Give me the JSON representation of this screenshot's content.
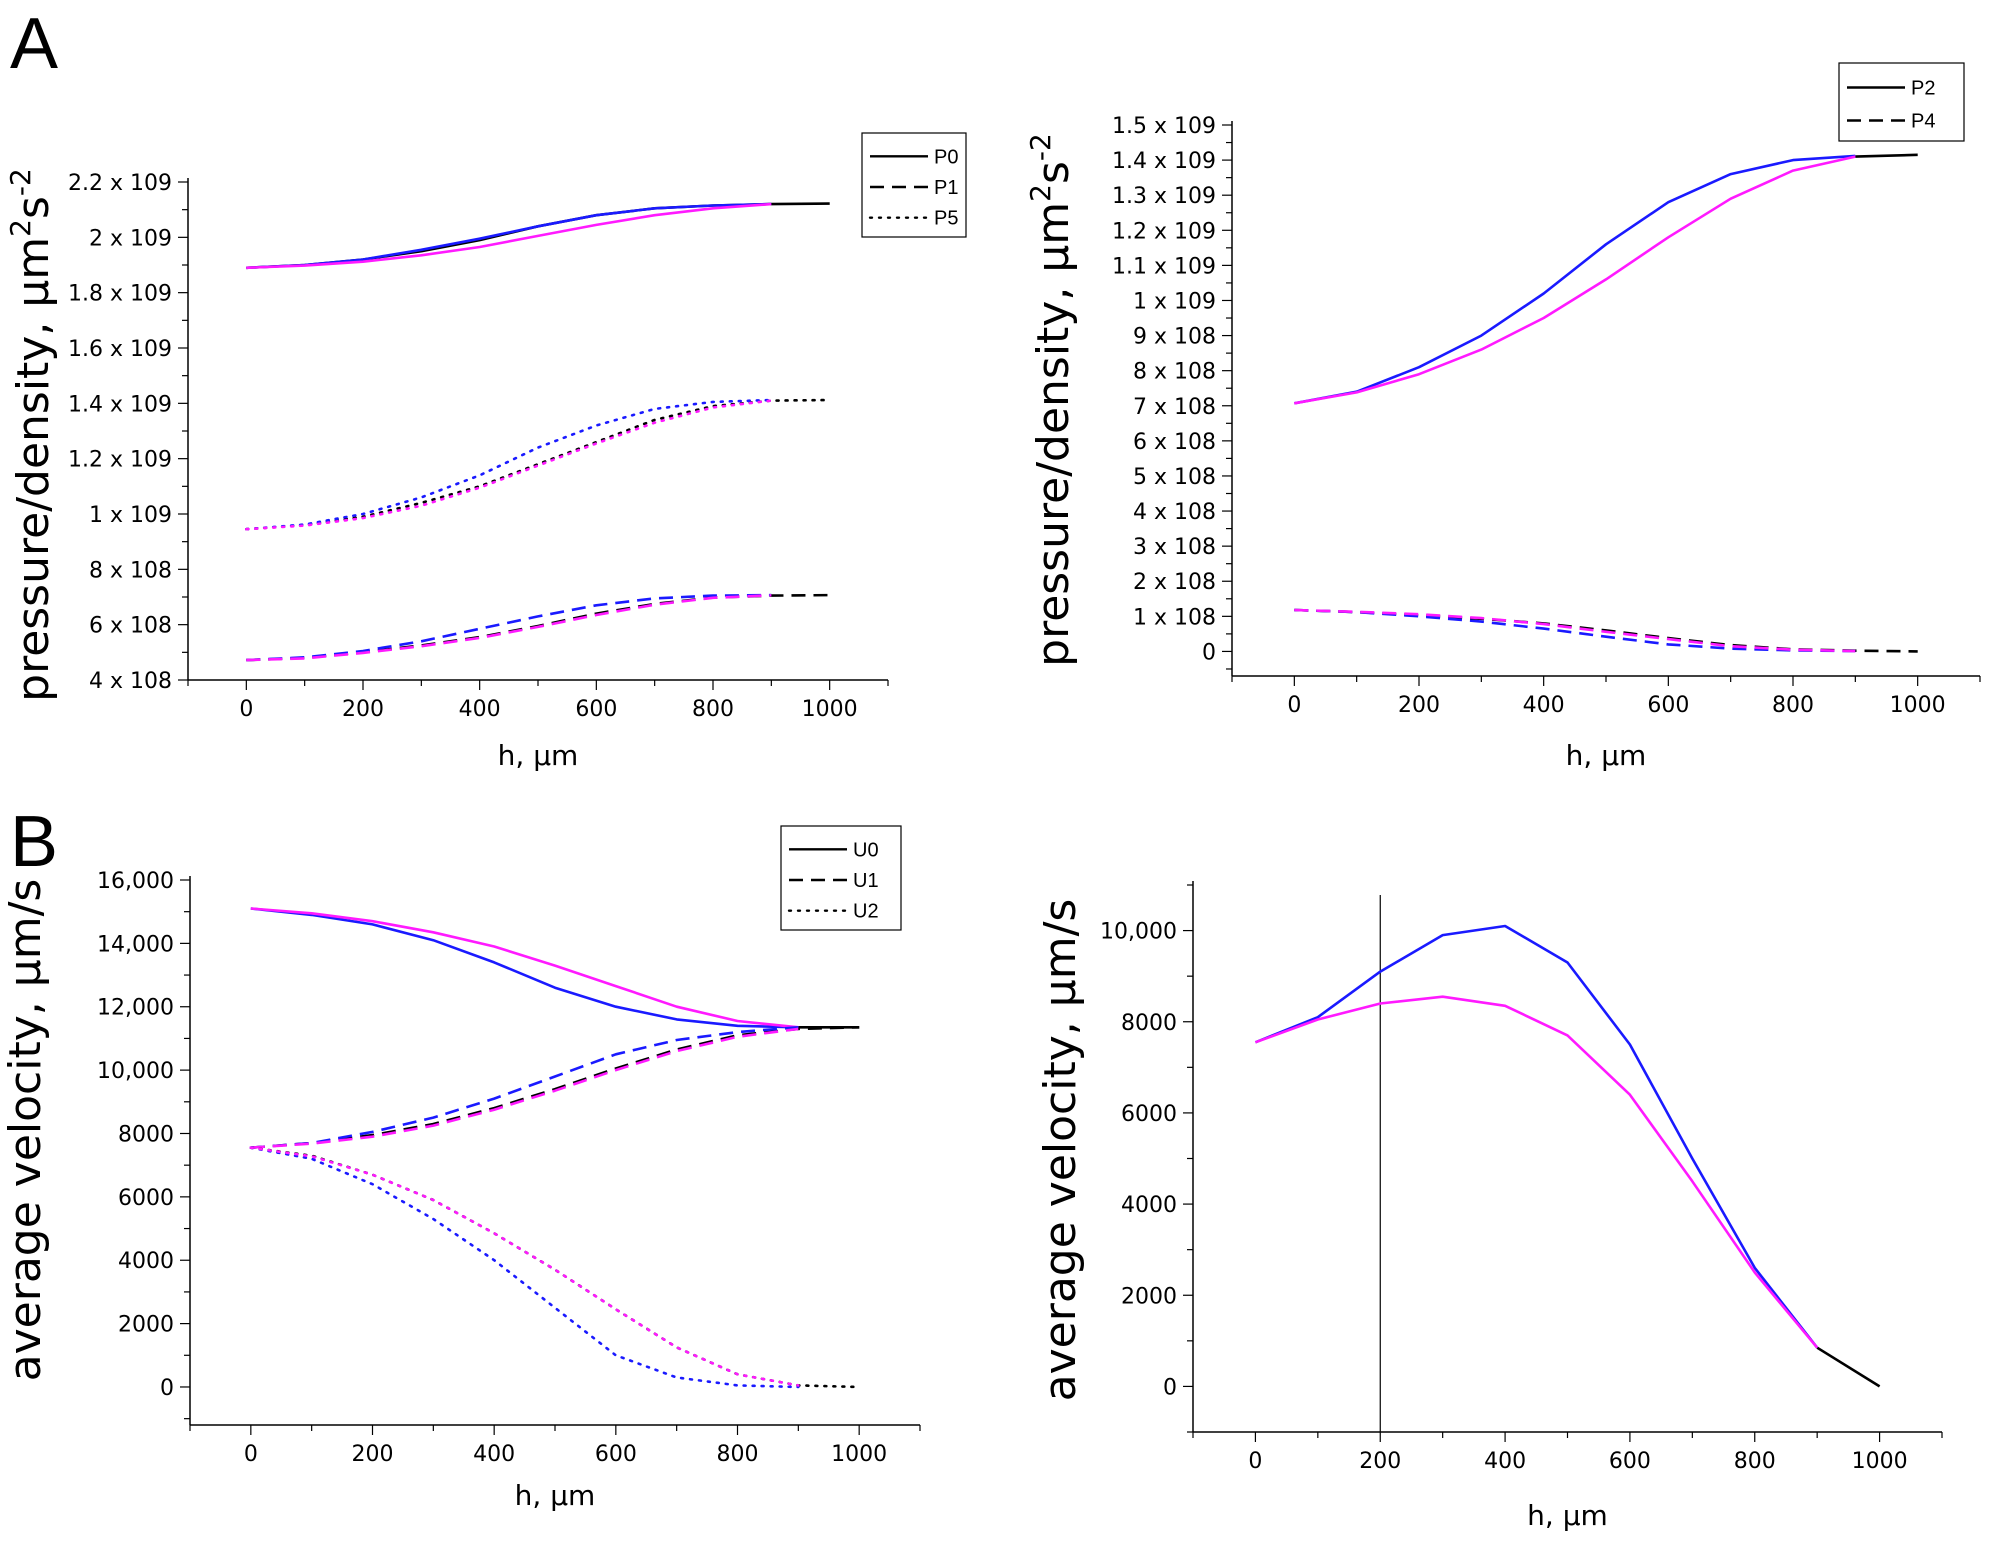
{
  "figure": {
    "panel_labels": [
      "A",
      "B"
    ]
  },
  "chart_data": [
    {
      "id": "A-left",
      "type": "line",
      "title": "",
      "xlabel": "h, µm",
      "ylabel": "pressure/density, µm²s⁻²",
      "ylabel_main": "pressure/density, µm",
      "ylabel_sup1": "2",
      "ylabel_mid": "s",
      "ylabel_sup2": "-2",
      "xlim": [
        -100,
        1100
      ],
      "ylim": [
        400000000,
        2200000000
      ],
      "x_ticks": [
        0,
        200,
        400,
        600,
        800,
        1000
      ],
      "x_tick_labels": [
        "0",
        "200",
        "400",
        "600",
        "800",
        "1000"
      ],
      "y_ticks": [
        400000000,
        600000000,
        800000000,
        1000000000,
        1200000000,
        1400000000,
        1600000000,
        1800000000,
        2000000000,
        2200000000
      ],
      "y_tick_labels": [
        "4 x 108",
        "6 x 108",
        "8 x 108",
        "1 x 109",
        "1.2 x 109",
        "1.4 x 109",
        "1.6 x 109",
        "1.8 x 109",
        "2 x 109",
        "2.2 x 109"
      ],
      "legend": {
        "position": "top-right",
        "entries": [
          {
            "label": "P0",
            "style": "solid"
          },
          {
            "label": "P1",
            "style": "dashed"
          },
          {
            "label": "P5",
            "style": "dotted"
          }
        ]
      },
      "series": [
        {
          "name": "P0",
          "color": "#000000",
          "style": "solid",
          "x": [
            0,
            100,
            200,
            300,
            400,
            500,
            600,
            700,
            800,
            900,
            1000
          ],
          "y": [
            1890000000,
            1900000000,
            1920000000,
            1950000000,
            1990000000,
            2040000000,
            2080000000,
            2105000000,
            2115000000,
            2120000000,
            2122000000
          ]
        },
        {
          "name": "P0 (blue)",
          "color": "#1a1aff",
          "style": "solid",
          "x": [
            0,
            100,
            200,
            300,
            400,
            500,
            600,
            700,
            800,
            900
          ],
          "y": [
            1890000000,
            1900000000,
            1920000000,
            1955000000,
            1995000000,
            2040000000,
            2080000000,
            2105000000,
            2115000000,
            2120000000
          ]
        },
        {
          "name": "P0 (magenta)",
          "color": "#ff1aff",
          "style": "solid",
          "x": [
            0,
            100,
            200,
            300,
            400,
            500,
            600,
            700,
            800,
            900
          ],
          "y": [
            1890000000,
            1898000000,
            1912000000,
            1935000000,
            1965000000,
            2005000000,
            2045000000,
            2080000000,
            2105000000,
            2120000000
          ]
        },
        {
          "name": "P5",
          "color": "#000000",
          "style": "dotted",
          "x": [
            0,
            100,
            200,
            300,
            400,
            500,
            600,
            700,
            800,
            900,
            1000
          ],
          "y": [
            945000000,
            960000000,
            990000000,
            1040000000,
            1100000000,
            1180000000,
            1260000000,
            1340000000,
            1390000000,
            1410000000,
            1412000000
          ]
        },
        {
          "name": "P5 (blue)",
          "color": "#1a1aff",
          "style": "dotted",
          "x": [
            0,
            100,
            200,
            300,
            400,
            500,
            600,
            700,
            800,
            900
          ],
          "y": [
            945000000,
            962000000,
            1000000000,
            1060000000,
            1140000000,
            1240000000,
            1320000000,
            1380000000,
            1405000000,
            1412000000
          ]
        },
        {
          "name": "P5 (magenta)",
          "color": "#ff1aff",
          "style": "dotted",
          "x": [
            0,
            100,
            200,
            300,
            400,
            500,
            600,
            700,
            800,
            900
          ],
          "y": [
            945000000,
            958000000,
            985000000,
            1030000000,
            1095000000,
            1175000000,
            1255000000,
            1330000000,
            1385000000,
            1410000000
          ]
        },
        {
          "name": "P1",
          "color": "#000000",
          "style": "dashed",
          "x": [
            0,
            100,
            200,
            300,
            400,
            500,
            600,
            700,
            800,
            900,
            1000
          ],
          "y": [
            472000000,
            480000000,
            500000000,
            525000000,
            555000000,
            595000000,
            640000000,
            675000000,
            698000000,
            705000000,
            707000000
          ]
        },
        {
          "name": "P1 (blue)",
          "color": "#1a1aff",
          "style": "dashed",
          "x": [
            0,
            100,
            200,
            300,
            400,
            500,
            600,
            700,
            800,
            900
          ],
          "y": [
            472000000,
            482000000,
            505000000,
            540000000,
            585000000,
            630000000,
            670000000,
            695000000,
            705000000,
            707000000
          ]
        },
        {
          "name": "P1 (magenta)",
          "color": "#ff1aff",
          "style": "dashed",
          "x": [
            0,
            100,
            200,
            300,
            400,
            500,
            600,
            700,
            800,
            900
          ],
          "y": [
            472000000,
            478000000,
            498000000,
            522000000,
            552000000,
            592000000,
            635000000,
            672000000,
            697000000,
            706000000
          ]
        }
      ]
    },
    {
      "id": "A-right",
      "type": "line",
      "title": "",
      "xlabel": "h, µm",
      "ylabel": "pressure/density, µm²s⁻²",
      "ylabel_main": "pressure/density, µm",
      "ylabel_sup1": "2",
      "ylabel_mid": "s",
      "ylabel_sup2": "-2",
      "xlim": [
        -100,
        1100
      ],
      "ylim": [
        -70000000,
        1500000000
      ],
      "x_ticks": [
        0,
        200,
        400,
        600,
        800,
        1000
      ],
      "x_tick_labels": [
        "0",
        "200",
        "400",
        "600",
        "800",
        "1000"
      ],
      "y_ticks": [
        0,
        100000000,
        200000000,
        300000000,
        400000000,
        500000000,
        600000000,
        700000000,
        800000000,
        900000000,
        1000000000,
        1100000000,
        1200000000,
        1300000000,
        1400000000,
        1500000000
      ],
      "y_tick_labels": [
        "0",
        "1 x 108",
        "2 x 108",
        "3 x 108",
        "4 x 108",
        "5 x 108",
        "6 x 108",
        "7 x 108",
        "8 x 108",
        "9 x 108",
        "1 x 109",
        "1.1 x 109",
        "1.2 x 109",
        "1.3 x 109",
        "1.4 x 109",
        "1.5 x 109"
      ],
      "legend": {
        "position": "top-right",
        "entries": [
          {
            "label": "P2",
            "style": "solid"
          },
          {
            "label": "P4",
            "style": "dashed"
          }
        ]
      },
      "series": [
        {
          "name": "P2",
          "color": "#000000",
          "style": "solid",
          "x": [
            900,
            1000
          ],
          "y": [
            1410000000,
            1415000000
          ]
        },
        {
          "name": "P2 (blue)",
          "color": "#1a1aff",
          "style": "solid",
          "x": [
            0,
            100,
            200,
            300,
            400,
            500,
            600,
            700,
            800,
            900
          ],
          "y": [
            707000000,
            740000000,
            810000000,
            900000000,
            1020000000,
            1160000000,
            1280000000,
            1360000000,
            1400000000,
            1412000000
          ]
        },
        {
          "name": "P2 (magenta)",
          "color": "#ff1aff",
          "style": "solid",
          "x": [
            0,
            100,
            200,
            300,
            400,
            500,
            600,
            700,
            800,
            900
          ],
          "y": [
            707000000,
            738000000,
            790000000,
            860000000,
            950000000,
            1060000000,
            1180000000,
            1290000000,
            1370000000,
            1410000000
          ]
        },
        {
          "name": "P4",
          "color": "#000000",
          "style": "dashed",
          "x": [
            0,
            100,
            200,
            300,
            400,
            500,
            600,
            700,
            800,
            900,
            1000
          ],
          "y": [
            118000000,
            112000000,
            103000000,
            93000000,
            80000000,
            60000000,
            38000000,
            18000000,
            6000000,
            2000000,
            0
          ]
        },
        {
          "name": "P4 (blue)",
          "color": "#1a1aff",
          "style": "dashed",
          "x": [
            0,
            100,
            200,
            300,
            400,
            500,
            600,
            700,
            800,
            900
          ],
          "y": [
            118000000,
            112000000,
            100000000,
            85000000,
            65000000,
            42000000,
            20000000,
            8000000,
            3000000,
            1000000
          ]
        },
        {
          "name": "P4 (magenta)",
          "color": "#ff1aff",
          "style": "dashed",
          "x": [
            0,
            100,
            200,
            300,
            400,
            500,
            600,
            700,
            800,
            900
          ],
          "y": [
            118000000,
            113000000,
            106000000,
            95000000,
            78000000,
            56000000,
            35000000,
            15000000,
            5000000,
            1000000
          ]
        }
      ]
    },
    {
      "id": "B-left",
      "type": "line",
      "title": "",
      "xlabel": "h, µm",
      "ylabel": "average velocity, µm/s",
      "xlim": [
        -100,
        1100
      ],
      "ylim": [
        -1200,
        16000
      ],
      "x_ticks": [
        0,
        200,
        400,
        600,
        800,
        1000
      ],
      "x_tick_labels": [
        "0",
        "200",
        "400",
        "600",
        "800",
        "1000"
      ],
      "y_ticks": [
        0,
        2000,
        4000,
        6000,
        8000,
        10000,
        12000,
        14000,
        16000
      ],
      "y_tick_labels": [
        "0",
        "2000",
        "4000",
        "6000",
        "8000",
        "10,000",
        "12,000",
        "14,000",
        "16,000"
      ],
      "legend": {
        "position": "top-right",
        "entries": [
          {
            "label": "U0",
            "style": "solid"
          },
          {
            "label": "U1",
            "style": "dashed"
          },
          {
            "label": "U2",
            "style": "dotted"
          }
        ]
      },
      "series": [
        {
          "name": "U0",
          "color": "#000000",
          "style": "solid",
          "x": [
            900,
            1000
          ],
          "y": [
            11350,
            11350
          ]
        },
        {
          "name": "U0 (blue)",
          "color": "#1a1aff",
          "style": "solid",
          "x": [
            0,
            100,
            200,
            300,
            400,
            500,
            600,
            700,
            800,
            900
          ],
          "y": [
            15100,
            14900,
            14600,
            14100,
            13400,
            12600,
            12000,
            11600,
            11400,
            11350
          ]
        },
        {
          "name": "U0 (magenta)",
          "color": "#ff1aff",
          "style": "solid",
          "x": [
            0,
            100,
            200,
            300,
            400,
            500,
            600,
            700,
            800,
            900
          ],
          "y": [
            15100,
            14950,
            14700,
            14350,
            13900,
            13300,
            12650,
            12000,
            11550,
            11350
          ]
        },
        {
          "name": "U1",
          "color": "#000000",
          "style": "dashed",
          "x": [
            0,
            100,
            200,
            300,
            400,
            500,
            600,
            700,
            800,
            900,
            1000
          ],
          "y": [
            7550,
            7700,
            7950,
            8300,
            8800,
            9400,
            10050,
            10650,
            11100,
            11300,
            11350
          ]
        },
        {
          "name": "U1 (blue)",
          "color": "#1a1aff",
          "style": "dashed",
          "x": [
            0,
            100,
            200,
            300,
            400,
            500,
            600,
            700,
            800,
            900
          ],
          "y": [
            7550,
            7700,
            8050,
            8500,
            9100,
            9800,
            10500,
            10950,
            11200,
            11350
          ]
        },
        {
          "name": "U1 (magenta)",
          "color": "#ff1aff",
          "style": "dashed",
          "x": [
            0,
            100,
            200,
            300,
            400,
            500,
            600,
            700,
            800,
            900
          ],
          "y": [
            7550,
            7680,
            7900,
            8250,
            8750,
            9350,
            10000,
            10600,
            11050,
            11300
          ]
        },
        {
          "name": "U2",
          "color": "#000000",
          "style": "dotted",
          "x": [
            0,
            100,
            200,
            300,
            400,
            500,
            600,
            700,
            800,
            900,
            1000
          ],
          "y": [
            7550,
            7300,
            6700,
            5900,
            4850,
            3700,
            2450,
            1250,
            400,
            50,
            0
          ]
        },
        {
          "name": "U2 (blue)",
          "color": "#1a1aff",
          "style": "dotted",
          "x": [
            0,
            100,
            200,
            300,
            400,
            500,
            600,
            700,
            800,
            900
          ],
          "y": [
            7550,
            7200,
            6400,
            5300,
            4000,
            2500,
            1000,
            300,
            50,
            0
          ]
        },
        {
          "name": "U2 (magenta)",
          "color": "#ff1aff",
          "style": "dotted",
          "x": [
            0,
            100,
            200,
            300,
            400,
            500,
            600,
            700,
            800,
            900
          ],
          "y": [
            7550,
            7280,
            6700,
            5900,
            4850,
            3700,
            2450,
            1250,
            400,
            50
          ]
        }
      ]
    },
    {
      "id": "B-right",
      "type": "line",
      "title": "",
      "xlabel": "h, µm",
      "ylabel": "average velocity, µm/s",
      "xlim": [
        -100,
        1100
      ],
      "ylim": [
        -1000,
        11000
      ],
      "x_ticks": [
        0,
        200,
        400,
        600,
        800,
        1000
      ],
      "x_tick_labels": [
        "0",
        "200",
        "400",
        "600",
        "800",
        "1000"
      ],
      "y_ticks": [
        0,
        2000,
        4000,
        6000,
        8000,
        10000
      ],
      "y_tick_labels": [
        "0",
        "2000",
        "4000",
        "6000",
        "8000",
        "10,000"
      ],
      "vertical_line_x": 200,
      "series": [
        {
          "name": "black",
          "color": "#000000",
          "style": "solid",
          "x": [
            900,
            1000
          ],
          "y": [
            850,
            0
          ]
        },
        {
          "name": "blue",
          "color": "#1a1aff",
          "style": "solid",
          "x": [
            0,
            100,
            200,
            300,
            400,
            500,
            600,
            700,
            800,
            900
          ],
          "y": [
            7550,
            8100,
            9100,
            9900,
            10100,
            9300,
            7500,
            5000,
            2600,
            850
          ]
        },
        {
          "name": "magenta",
          "color": "#ff1aff",
          "style": "solid",
          "x": [
            0,
            100,
            200,
            300,
            400,
            500,
            600,
            700,
            800,
            900
          ],
          "y": [
            7550,
            8050,
            8400,
            8550,
            8350,
            7700,
            6400,
            4500,
            2500,
            850
          ]
        }
      ]
    }
  ]
}
